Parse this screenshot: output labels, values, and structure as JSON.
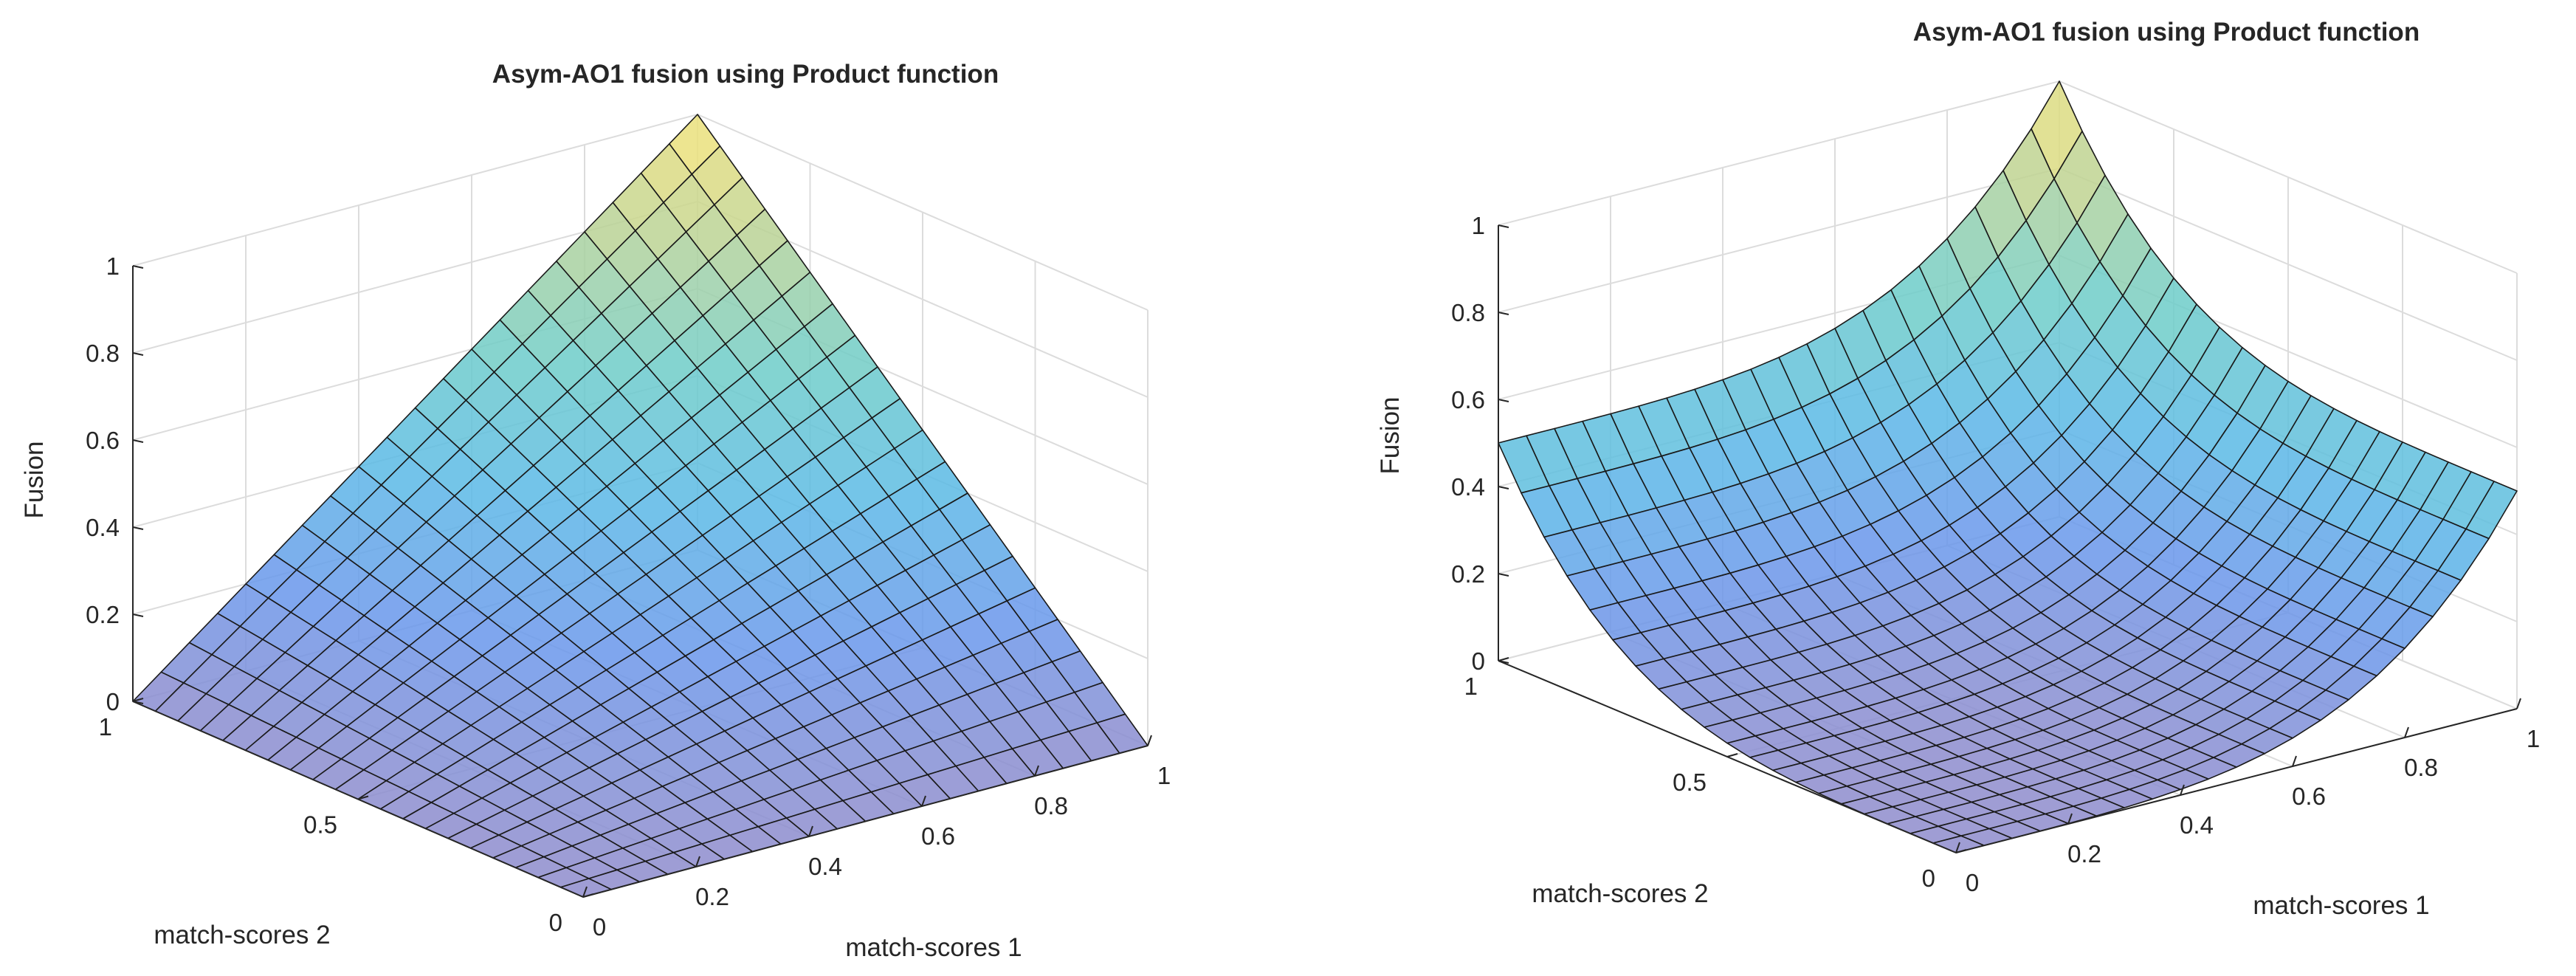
{
  "chart_data": [
    {
      "type": "surface3d",
      "title": "Asym-AO1 fusion using Product function",
      "xlabel": "match-scores 1",
      "ylabel": "match-scores 2",
      "zlabel": "Fusion",
      "xlim": [
        0,
        1
      ],
      "ylim": [
        0,
        1
      ],
      "zlim": [
        0,
        1
      ],
      "xticks": [
        "0",
        "0.2",
        "0.4",
        "0.6",
        "0.8",
        "1"
      ],
      "yticks": [
        "0",
        "0.5",
        "1"
      ],
      "zticks": [
        "0",
        "0.2",
        "0.4",
        "0.6",
        "0.8",
        "1"
      ],
      "grid": true,
      "colormap": "parula",
      "grid_points": 21,
      "x_range": [
        0,
        1
      ],
      "y_range": [
        0,
        1
      ],
      "formula": "z = x * y",
      "corner_values": {
        "z_at_0_0": 0,
        "z_at_1_0": 0,
        "z_at_0_1": 0,
        "z_at_1_1": 1
      }
    },
    {
      "type": "surface3d",
      "title": "Asym-AO1 fusion using Product function",
      "xlabel": "match-scores 1",
      "ylabel": "match-scores 2",
      "zlabel": "Fusion",
      "xlim": [
        0,
        1
      ],
      "ylim": [
        0,
        1
      ],
      "zlim": [
        0,
        1
      ],
      "xticks": [
        "0",
        "0.2",
        "0.4",
        "0.6",
        "0.8",
        "1"
      ],
      "yticks": [
        "0",
        "0.5",
        "1"
      ],
      "zticks": [
        "0",
        "0.2",
        "0.4",
        "0.6",
        "0.8",
        "1"
      ],
      "grid": true,
      "colormap": "parula",
      "grid_points": 21,
      "x_range": [
        0,
        1
      ],
      "y_range": [
        0,
        1
      ],
      "formula": "z = (x^4 + y^4) / 2",
      "corner_values": {
        "z_at_0_0": 0,
        "z_at_1_0": 0.5,
        "z_at_0_1": 0.5,
        "z_at_1_1": 1
      }
    }
  ]
}
